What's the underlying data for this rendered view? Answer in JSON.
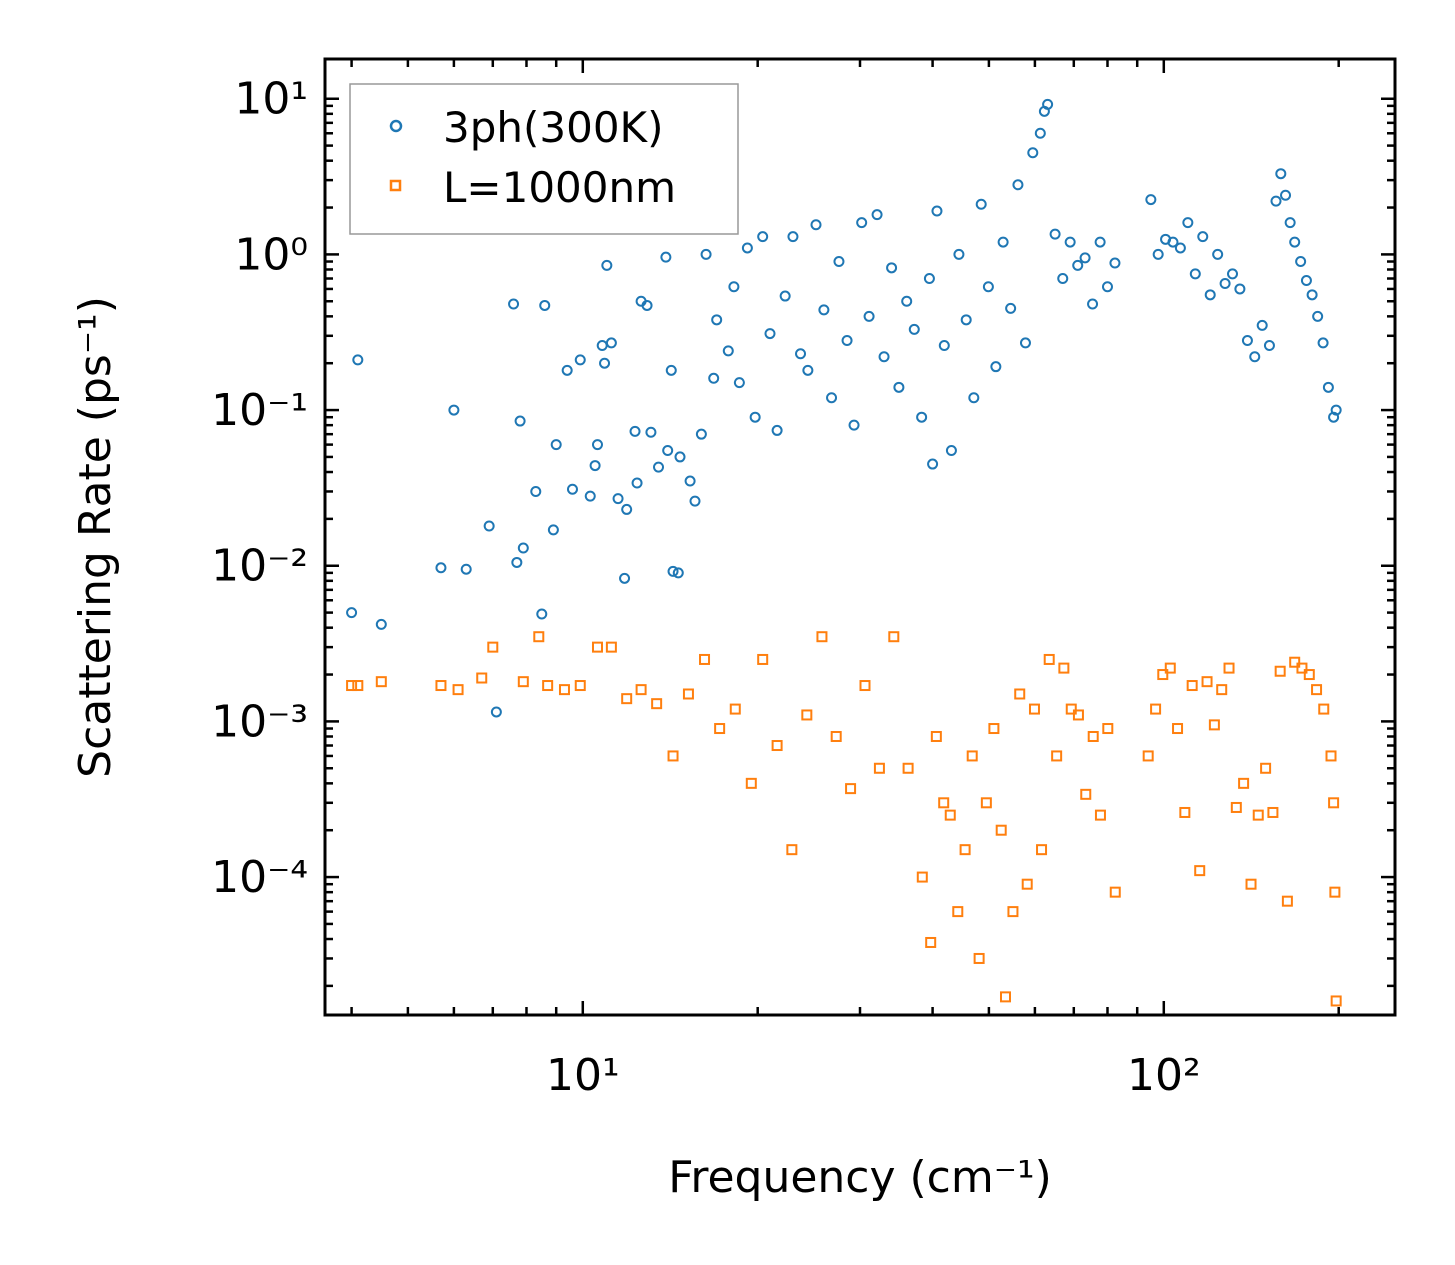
{
  "chart_data": {
    "type": "scatter",
    "xscale": "log",
    "yscale": "log",
    "xlim": [
      3.6,
      250
    ],
    "ylim": [
      1.3e-05,
      18
    ],
    "xlabel": "Frequency (cm⁻¹)",
    "ylabel": "Scattering Rate (ps⁻¹)",
    "title": "",
    "grid": false,
    "legend_position": "top-left",
    "x_ticks": [
      {
        "value": 10,
        "label": "10¹"
      },
      {
        "value": 100,
        "label": "10²"
      }
    ],
    "y_ticks": [
      {
        "value": 10,
        "label": "10¹"
      },
      {
        "value": 1,
        "label": "10⁰"
      },
      {
        "value": 0.1,
        "label": "10⁻¹"
      },
      {
        "value": 0.01,
        "label": "10⁻²"
      },
      {
        "value": 0.001,
        "label": "10⁻³"
      },
      {
        "value": 0.0001,
        "label": "10⁻⁴"
      }
    ],
    "series": [
      {
        "name": "3ph(300K)",
        "marker": "circle",
        "color": "#1f77b4",
        "points": [
          [
            4.1,
            0.21
          ],
          [
            4.0,
            0.005
          ],
          [
            4.5,
            0.0042
          ],
          [
            5.7,
            0.0097
          ],
          [
            6.0,
            0.1
          ],
          [
            6.3,
            0.0095
          ],
          [
            6.9,
            0.018
          ],
          [
            7.1,
            0.00115
          ],
          [
            7.6,
            0.48
          ],
          [
            7.7,
            0.0105
          ],
          [
            7.8,
            0.085
          ],
          [
            7.9,
            0.013
          ],
          [
            8.3,
            0.03
          ],
          [
            8.5,
            0.0049
          ],
          [
            8.6,
            0.47
          ],
          [
            8.9,
            0.017
          ],
          [
            9.0,
            0.06
          ],
          [
            9.4,
            0.18
          ],
          [
            9.6,
            0.031
          ],
          [
            9.9,
            0.21
          ],
          [
            10.3,
            0.028
          ],
          [
            10.5,
            0.044
          ],
          [
            10.6,
            0.06
          ],
          [
            10.8,
            0.26
          ],
          [
            10.9,
            0.2
          ],
          [
            11.0,
            0.85
          ],
          [
            11.2,
            0.27
          ],
          [
            11.5,
            0.027
          ],
          [
            11.8,
            0.0083
          ],
          [
            11.9,
            0.023
          ],
          [
            12.3,
            0.073
          ],
          [
            12.4,
            0.034
          ],
          [
            12.6,
            0.5
          ],
          [
            12.9,
            0.47
          ],
          [
            13.1,
            0.072
          ],
          [
            13.5,
            0.043
          ],
          [
            13.9,
            0.96
          ],
          [
            14.0,
            0.055
          ],
          [
            14.2,
            0.18
          ],
          [
            14.3,
            0.0092
          ],
          [
            14.6,
            0.009
          ],
          [
            14.7,
            0.05
          ],
          [
            15.3,
            0.035
          ],
          [
            15.6,
            0.026
          ],
          [
            16.0,
            0.07
          ],
          [
            16.3,
            1.0
          ],
          [
            16.8,
            0.16
          ],
          [
            17.0,
            0.38
          ],
          [
            17.8,
            0.24
          ],
          [
            18.2,
            0.62
          ],
          [
            18.6,
            0.15
          ],
          [
            19.2,
            1.1
          ],
          [
            19.8,
            0.09
          ],
          [
            20.4,
            1.3
          ],
          [
            21.0,
            0.31
          ],
          [
            21.6,
            0.074
          ],
          [
            22.3,
            0.54
          ],
          [
            23.0,
            1.3
          ],
          [
            23.7,
            0.23
          ],
          [
            24.4,
            0.18
          ],
          [
            25.2,
            1.55
          ],
          [
            26.0,
            0.44
          ],
          [
            26.8,
            0.12
          ],
          [
            27.6,
            0.9
          ],
          [
            28.5,
            0.28
          ],
          [
            29.3,
            0.08
          ],
          [
            30.2,
            1.6
          ],
          [
            31.1,
            0.4
          ],
          [
            32.1,
            1.8
          ],
          [
            33.0,
            0.22
          ],
          [
            34.0,
            0.82
          ],
          [
            35.0,
            0.14
          ],
          [
            36.1,
            0.5
          ],
          [
            37.2,
            0.33
          ],
          [
            38.3,
            0.09
          ],
          [
            39.5,
            0.7
          ],
          [
            40.0,
            0.045
          ],
          [
            40.7,
            1.9
          ],
          [
            41.9,
            0.26
          ],
          [
            43.1,
            0.055
          ],
          [
            44.4,
            1.0
          ],
          [
            45.7,
            0.38
          ],
          [
            47.1,
            0.12
          ],
          [
            48.5,
            2.1
          ],
          [
            49.9,
            0.62
          ],
          [
            51.4,
            0.19
          ],
          [
            52.9,
            1.2
          ],
          [
            54.5,
            0.45
          ],
          [
            56.1,
            2.8
          ],
          [
            57.8,
            0.27
          ],
          [
            59.5,
            4.5
          ],
          [
            61.3,
            6.0
          ],
          [
            62.3,
            8.3
          ],
          [
            63.1,
            9.2
          ],
          [
            65.0,
            1.35
          ],
          [
            67.0,
            0.7
          ],
          [
            69.0,
            1.2
          ],
          [
            71.1,
            0.85
          ],
          [
            73.2,
            0.95
          ],
          [
            75.4,
            0.48
          ],
          [
            77.7,
            1.2
          ],
          [
            80.0,
            0.62
          ],
          [
            82.4,
            0.88
          ],
          [
            95.0,
            2.25
          ],
          [
            97.8,
            1.0
          ],
          [
            100.7,
            1.25
          ],
          [
            103.7,
            1.2
          ],
          [
            106.8,
            1.1
          ],
          [
            110.0,
            1.6
          ],
          [
            113.3,
            0.75
          ],
          [
            116.7,
            1.3
          ],
          [
            120.2,
            0.55
          ],
          [
            123.8,
            1.0
          ],
          [
            127.5,
            0.65
          ],
          [
            131.3,
            0.75
          ],
          [
            135.2,
            0.6
          ],
          [
            139.3,
            0.28
          ],
          [
            143.4,
            0.22
          ],
          [
            147.7,
            0.35
          ],
          [
            152.0,
            0.26
          ],
          [
            156.0,
            2.2
          ],
          [
            159.0,
            3.3
          ],
          [
            162.0,
            2.4
          ],
          [
            165.0,
            1.6
          ],
          [
            168.0,
            1.2
          ],
          [
            172.0,
            0.9
          ],
          [
            176.0,
            0.68
          ],
          [
            180.0,
            0.55
          ],
          [
            184.0,
            0.4
          ],
          [
            188.0,
            0.27
          ],
          [
            192.0,
            0.14
          ],
          [
            196.0,
            0.09
          ],
          [
            198.0,
            0.1
          ]
        ]
      },
      {
        "name": "L=1000nm",
        "marker": "square",
        "color": "#ff7f0e",
        "points": [
          [
            4.0,
            0.0017
          ],
          [
            4.1,
            0.0017
          ],
          [
            4.5,
            0.0018
          ],
          [
            5.7,
            0.0017
          ],
          [
            6.1,
            0.0016
          ],
          [
            6.7,
            0.0019
          ],
          [
            7.0,
            0.003
          ],
          [
            7.9,
            0.0018
          ],
          [
            8.4,
            0.0035
          ],
          [
            8.7,
            0.0017
          ],
          [
            9.3,
            0.0016
          ],
          [
            9.9,
            0.0017
          ],
          [
            10.6,
            0.003
          ],
          [
            11.2,
            0.003
          ],
          [
            11.9,
            0.0014
          ],
          [
            12.6,
            0.0016
          ],
          [
            13.4,
            0.0013
          ],
          [
            14.3,
            0.0006
          ],
          [
            15.2,
            0.0015
          ],
          [
            16.2,
            0.0025
          ],
          [
            17.2,
            0.0009
          ],
          [
            18.3,
            0.0012
          ],
          [
            19.5,
            0.0004
          ],
          [
            20.4,
            0.0025
          ],
          [
            21.6,
            0.0007
          ],
          [
            22.9,
            0.00015
          ],
          [
            24.3,
            0.0011
          ],
          [
            25.8,
            0.0035
          ],
          [
            27.3,
            0.0008
          ],
          [
            28.9,
            0.00037
          ],
          [
            30.6,
            0.0017
          ],
          [
            32.4,
            0.0005
          ],
          [
            34.3,
            0.0035
          ],
          [
            36.3,
            0.0005
          ],
          [
            38.4,
            0.0001
          ],
          [
            39.7,
            3.8e-05
          ],
          [
            40.6,
            0.0008
          ],
          [
            41.8,
            0.0003
          ],
          [
            42.9,
            0.00025
          ],
          [
            44.2,
            6e-05
          ],
          [
            45.5,
            0.00015
          ],
          [
            46.8,
            0.0006
          ],
          [
            48.1,
            3e-05
          ],
          [
            49.5,
            0.0003
          ],
          [
            51.0,
            0.0009
          ],
          [
            52.5,
            0.0002
          ],
          [
            53.4,
            1.7e-05
          ],
          [
            55.0,
            6e-05
          ],
          [
            56.5,
            0.0015
          ],
          [
            58.2,
            9e-05
          ],
          [
            59.9,
            0.0012
          ],
          [
            61.6,
            0.00015
          ],
          [
            63.5,
            0.0025
          ],
          [
            65.4,
            0.0006
          ],
          [
            67.3,
            0.0022
          ],
          [
            69.3,
            0.0012
          ],
          [
            71.3,
            0.0011
          ],
          [
            73.4,
            0.00034
          ],
          [
            75.6,
            0.0008
          ],
          [
            77.8,
            0.00025
          ],
          [
            80.1,
            0.0009
          ],
          [
            82.5,
            8e-05
          ],
          [
            94.0,
            0.0006
          ],
          [
            96.8,
            0.0012
          ],
          [
            99.6,
            0.002
          ],
          [
            102.6,
            0.0022
          ],
          [
            105.6,
            0.0009
          ],
          [
            108.7,
            0.00026
          ],
          [
            111.9,
            0.0017
          ],
          [
            115.3,
            0.00011
          ],
          [
            118.7,
            0.0018
          ],
          [
            122.2,
            0.00095
          ],
          [
            125.8,
            0.0016
          ],
          [
            129.5,
            0.0022
          ],
          [
            133.3,
            0.00028
          ],
          [
            137.2,
            0.0004
          ],
          [
            141.3,
            9e-05
          ],
          [
            145.4,
            0.00025
          ],
          [
            149.7,
            0.0005
          ],
          [
            154.1,
            0.00026
          ],
          [
            158.6,
            0.0021
          ],
          [
            163.2,
            7e-05
          ],
          [
            168.0,
            0.0024
          ],
          [
            172.9,
            0.0022
          ],
          [
            178.0,
            0.002
          ],
          [
            183.2,
            0.0016
          ],
          [
            188.5,
            0.0012
          ],
          [
            194.0,
            0.0006
          ],
          [
            196.0,
            0.0003
          ],
          [
            197.0,
            8e-05
          ],
          [
            198.0,
            1.6e-05
          ]
        ]
      }
    ]
  }
}
